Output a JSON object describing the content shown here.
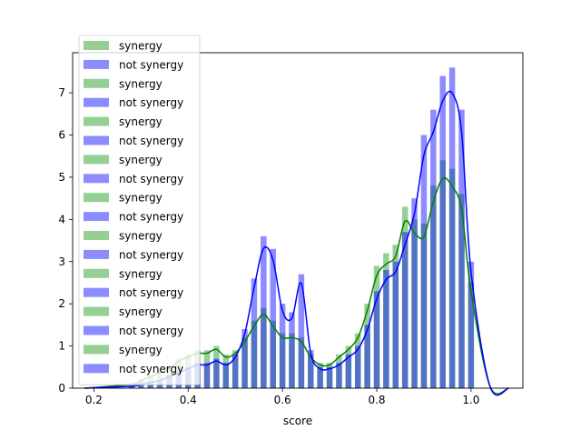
{
  "chart_data": {
    "type": "bar",
    "title": "",
    "xlabel": "score",
    "ylabel": "",
    "xlim": [
      0.155,
      1.11
    ],
    "ylim": [
      0,
      7.95
    ],
    "xticks": [
      "0.2",
      "0.4",
      "0.6",
      "0.8",
      "1.0"
    ],
    "yticks": [
      "0",
      "1",
      "2",
      "3",
      "4",
      "5",
      "6",
      "7"
    ],
    "grid": false,
    "legend_position": "upper-left",
    "colors": {
      "synergy": "#2ca02c",
      "not_synergy": "#0000ff",
      "kde_synergy": "#008000",
      "kde_not_synergy": "#0000ff"
    },
    "legend_entries": [
      "synergy",
      "not synergy",
      "synergy",
      "not synergy",
      "synergy",
      "not synergy",
      "synergy",
      "not synergy",
      "synergy",
      "not synergy",
      "synergy",
      "not synergy",
      "synergy",
      "not synergy",
      "synergy",
      "not synergy",
      "synergy",
      "not synergy"
    ],
    "bin_width": 0.0125,
    "series": [
      {
        "name": "synergy",
        "x": [
          0.28,
          0.3,
          0.32,
          0.34,
          0.36,
          0.38,
          0.4,
          0.42,
          0.44,
          0.46,
          0.48,
          0.5,
          0.52,
          0.54,
          0.56,
          0.58,
          0.6,
          0.62,
          0.64,
          0.66,
          0.68,
          0.7,
          0.72,
          0.74,
          0.76,
          0.78,
          0.8,
          0.82,
          0.84,
          0.86,
          0.88,
          0.9,
          0.92,
          0.94,
          0.96,
          0.98,
          1.0
        ],
        "values": [
          0.1,
          0.2,
          0.3,
          0.4,
          0.5,
          0.7,
          0.8,
          0.9,
          0.9,
          1.0,
          0.8,
          0.9,
          1.2,
          1.6,
          1.9,
          1.6,
          1.3,
          1.3,
          1.2,
          0.8,
          0.6,
          0.6,
          0.8,
          1.0,
          1.3,
          2.0,
          2.9,
          3.2,
          3.4,
          4.3,
          4.0,
          3.9,
          4.8,
          5.4,
          5.2,
          4.6,
          2.5
        ]
      },
      {
        "name": "not synergy",
        "x": [
          0.28,
          0.3,
          0.32,
          0.34,
          0.36,
          0.38,
          0.4,
          0.42,
          0.44,
          0.46,
          0.48,
          0.5,
          0.52,
          0.54,
          0.56,
          0.58,
          0.6,
          0.62,
          0.64,
          0.66,
          0.68,
          0.7,
          0.72,
          0.74,
          0.76,
          0.78,
          0.8,
          0.82,
          0.84,
          0.86,
          0.88,
          0.9,
          0.92,
          0.94,
          0.96,
          0.98,
          1.0
        ],
        "values": [
          0.05,
          0.1,
          0.15,
          0.2,
          0.3,
          0.4,
          0.5,
          0.6,
          0.6,
          0.7,
          0.6,
          0.8,
          1.4,
          2.6,
          3.6,
          3.3,
          2.0,
          1.8,
          2.7,
          0.9,
          0.5,
          0.5,
          0.6,
          0.8,
          1.0,
          1.5,
          2.3,
          2.8,
          3.0,
          3.7,
          4.5,
          6.0,
          6.6,
          7.4,
          7.6,
          6.6,
          3.0
        ]
      }
    ]
  }
}
